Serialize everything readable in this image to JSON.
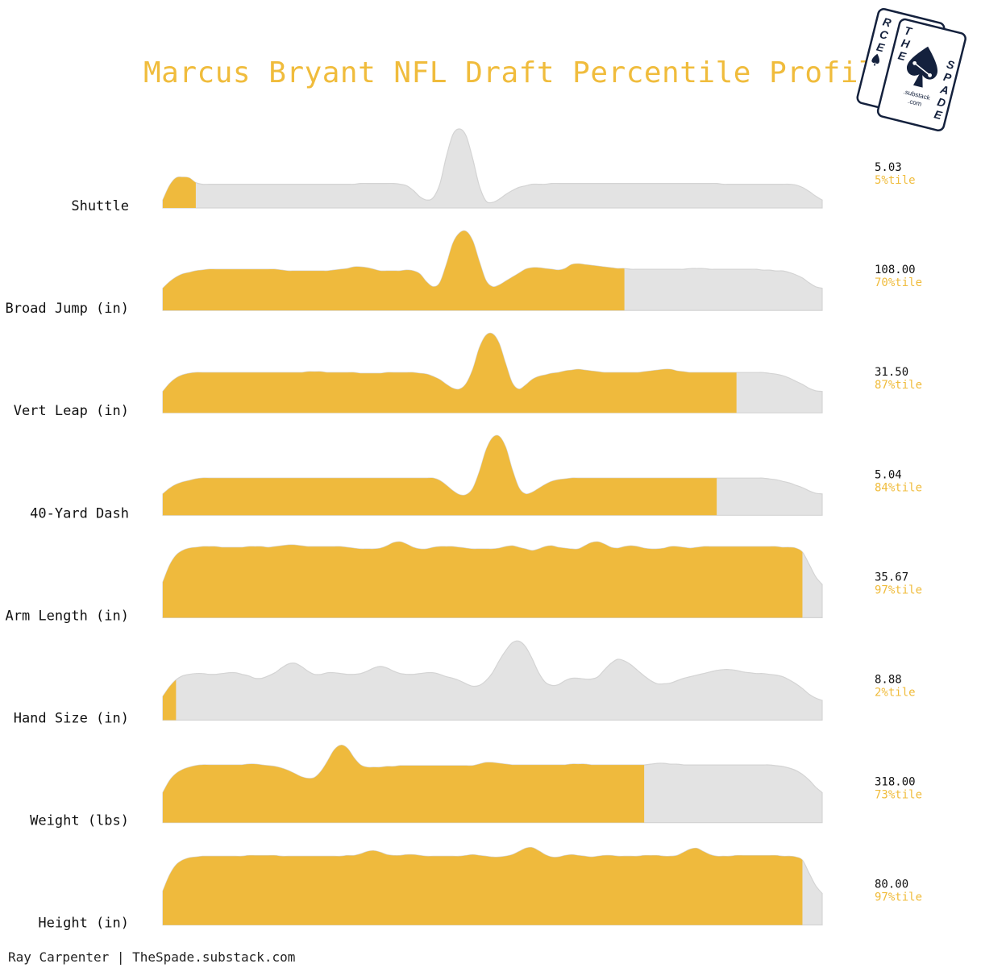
{
  "chart_data": {
    "type": "ridgeline",
    "title": "Marcus Bryant NFL Draft Percentile Profile",
    "x_range": [
      0,
      100
    ],
    "rows": [
      {
        "label": "Shuttle",
        "value": "5.03",
        "percentile": 5,
        "percentile_label": "5%tile",
        "density": [
          0.1,
          0.28,
          0.38,
          0.39,
          0.38,
          0.32,
          0.3,
          0.3,
          0.3,
          0.3,
          0.3,
          0.3,
          0.3,
          0.3,
          0.3,
          0.3,
          0.3,
          0.3,
          0.3,
          0.3,
          0.3,
          0.3,
          0.3,
          0.3,
          0.3,
          0.3,
          0.3,
          0.3,
          0.3,
          0.3,
          0.31,
          0.31,
          0.31,
          0.31,
          0.31,
          0.31,
          0.3,
          0.28,
          0.22,
          0.14,
          0.1,
          0.13,
          0.3,
          0.65,
          0.93,
          1.0,
          0.91,
          0.62,
          0.28,
          0.09,
          0.07,
          0.11,
          0.17,
          0.22,
          0.26,
          0.28,
          0.3,
          0.3,
          0.3,
          0.31,
          0.31,
          0.31,
          0.31,
          0.31,
          0.31,
          0.31,
          0.31,
          0.31,
          0.31,
          0.31,
          0.31,
          0.31,
          0.31,
          0.31,
          0.31,
          0.31,
          0.31,
          0.31,
          0.31,
          0.31,
          0.31,
          0.31,
          0.31,
          0.31,
          0.31,
          0.3,
          0.3,
          0.3,
          0.3,
          0.3,
          0.3,
          0.3,
          0.3,
          0.3,
          0.3,
          0.3,
          0.29,
          0.26,
          0.21,
          0.15,
          0.1
        ]
      },
      {
        "label": "Broad Jump (in)",
        "value": "108.00",
        "percentile": 70,
        "percentile_label": "70%tile",
        "density": [
          0.28,
          0.36,
          0.42,
          0.46,
          0.48,
          0.5,
          0.51,
          0.52,
          0.52,
          0.52,
          0.52,
          0.52,
          0.52,
          0.52,
          0.52,
          0.52,
          0.52,
          0.52,
          0.51,
          0.5,
          0.5,
          0.5,
          0.5,
          0.5,
          0.5,
          0.5,
          0.51,
          0.52,
          0.53,
          0.55,
          0.55,
          0.54,
          0.52,
          0.5,
          0.5,
          0.5,
          0.5,
          0.51,
          0.5,
          0.46,
          0.36,
          0.3,
          0.35,
          0.58,
          0.85,
          0.98,
          1.0,
          0.88,
          0.62,
          0.38,
          0.3,
          0.32,
          0.37,
          0.42,
          0.47,
          0.52,
          0.54,
          0.54,
          0.53,
          0.52,
          0.51,
          0.53,
          0.58,
          0.59,
          0.58,
          0.57,
          0.56,
          0.55,
          0.54,
          0.53,
          0.53,
          0.52,
          0.52,
          0.52,
          0.52,
          0.52,
          0.52,
          0.52,
          0.52,
          0.52,
          0.53,
          0.53,
          0.53,
          0.52,
          0.52,
          0.52,
          0.52,
          0.52,
          0.52,
          0.52,
          0.52,
          0.51,
          0.51,
          0.5,
          0.5,
          0.48,
          0.45,
          0.41,
          0.35,
          0.3,
          0.28
        ]
      },
      {
        "label": "Vert Leap (in)",
        "value": "31.50",
        "percentile": 87,
        "percentile_label": "87%tile",
        "density": [
          0.27,
          0.37,
          0.44,
          0.48,
          0.5,
          0.51,
          0.51,
          0.51,
          0.51,
          0.51,
          0.51,
          0.51,
          0.51,
          0.51,
          0.51,
          0.51,
          0.51,
          0.51,
          0.51,
          0.51,
          0.51,
          0.51,
          0.52,
          0.52,
          0.52,
          0.51,
          0.51,
          0.51,
          0.51,
          0.51,
          0.5,
          0.5,
          0.5,
          0.5,
          0.51,
          0.51,
          0.51,
          0.51,
          0.51,
          0.5,
          0.49,
          0.46,
          0.42,
          0.36,
          0.31,
          0.3,
          0.37,
          0.55,
          0.82,
          0.98,
          1.0,
          0.88,
          0.62,
          0.38,
          0.3,
          0.35,
          0.42,
          0.46,
          0.48,
          0.5,
          0.51,
          0.53,
          0.54,
          0.55,
          0.54,
          0.53,
          0.52,
          0.51,
          0.51,
          0.51,
          0.51,
          0.51,
          0.51,
          0.52,
          0.53,
          0.54,
          0.55,
          0.55,
          0.53,
          0.52,
          0.51,
          0.51,
          0.51,
          0.51,
          0.51,
          0.51,
          0.51,
          0.51,
          0.51,
          0.51,
          0.51,
          0.51,
          0.5,
          0.49,
          0.47,
          0.44,
          0.4,
          0.36,
          0.31,
          0.28,
          0.27
        ]
      },
      {
        "label": "40-Yard Dash",
        "value": "5.04",
        "percentile": 84,
        "percentile_label": "84%tile",
        "density": [
          0.27,
          0.34,
          0.39,
          0.42,
          0.44,
          0.46,
          0.47,
          0.47,
          0.47,
          0.47,
          0.47,
          0.47,
          0.47,
          0.47,
          0.47,
          0.47,
          0.47,
          0.47,
          0.47,
          0.47,
          0.47,
          0.47,
          0.47,
          0.47,
          0.47,
          0.47,
          0.47,
          0.47,
          0.47,
          0.47,
          0.47,
          0.47,
          0.47,
          0.47,
          0.47,
          0.47,
          0.47,
          0.47,
          0.47,
          0.47,
          0.47,
          0.47,
          0.44,
          0.38,
          0.31,
          0.26,
          0.26,
          0.34,
          0.55,
          0.82,
          0.98,
          1.0,
          0.86,
          0.58,
          0.35,
          0.27,
          0.29,
          0.34,
          0.39,
          0.43,
          0.45,
          0.46,
          0.47,
          0.47,
          0.47,
          0.47,
          0.47,
          0.47,
          0.47,
          0.47,
          0.47,
          0.47,
          0.47,
          0.47,
          0.47,
          0.47,
          0.47,
          0.47,
          0.47,
          0.47,
          0.47,
          0.47,
          0.47,
          0.47,
          0.47,
          0.47,
          0.47,
          0.47,
          0.47,
          0.47,
          0.47,
          0.47,
          0.46,
          0.45,
          0.43,
          0.41,
          0.38,
          0.35,
          0.31,
          0.28,
          0.27
        ]
      },
      {
        "label": "Arm Length (in)",
        "value": "35.67",
        "percentile": 97,
        "percentile_label": "97%tile",
        "density": [
          0.45,
          0.66,
          0.79,
          0.85,
          0.88,
          0.89,
          0.9,
          0.9,
          0.9,
          0.89,
          0.89,
          0.89,
          0.89,
          0.9,
          0.9,
          0.9,
          0.89,
          0.9,
          0.91,
          0.92,
          0.92,
          0.91,
          0.9,
          0.9,
          0.9,
          0.9,
          0.9,
          0.9,
          0.89,
          0.88,
          0.87,
          0.87,
          0.87,
          0.88,
          0.91,
          0.95,
          0.96,
          0.93,
          0.89,
          0.87,
          0.87,
          0.89,
          0.9,
          0.9,
          0.9,
          0.89,
          0.88,
          0.87,
          0.87,
          0.87,
          0.87,
          0.88,
          0.9,
          0.91,
          0.89,
          0.87,
          0.85,
          0.87,
          0.9,
          0.91,
          0.89,
          0.88,
          0.87,
          0.87,
          0.91,
          0.95,
          0.96,
          0.93,
          0.89,
          0.88,
          0.9,
          0.91,
          0.9,
          0.88,
          0.87,
          0.87,
          0.88,
          0.9,
          0.9,
          0.89,
          0.88,
          0.89,
          0.9,
          0.9,
          0.9,
          0.9,
          0.9,
          0.9,
          0.9,
          0.9,
          0.9,
          0.9,
          0.9,
          0.9,
          0.89,
          0.89,
          0.88,
          0.83,
          0.68,
          0.52,
          0.42
        ]
      },
      {
        "label": "Hand Size (in)",
        "value": "8.88",
        "percentile": 2,
        "percentile_label": "2%tile",
        "density": [
          0.3,
          0.42,
          0.51,
          0.56,
          0.58,
          0.59,
          0.59,
          0.58,
          0.58,
          0.59,
          0.6,
          0.6,
          0.58,
          0.56,
          0.53,
          0.53,
          0.56,
          0.6,
          0.66,
          0.71,
          0.72,
          0.68,
          0.62,
          0.58,
          0.58,
          0.6,
          0.6,
          0.59,
          0.58,
          0.58,
          0.59,
          0.62,
          0.66,
          0.68,
          0.66,
          0.62,
          0.59,
          0.58,
          0.58,
          0.59,
          0.6,
          0.6,
          0.58,
          0.55,
          0.53,
          0.5,
          0.46,
          0.43,
          0.44,
          0.5,
          0.6,
          0.75,
          0.88,
          0.98,
          1.0,
          0.93,
          0.78,
          0.6,
          0.48,
          0.44,
          0.45,
          0.5,
          0.53,
          0.53,
          0.52,
          0.52,
          0.55,
          0.64,
          0.72,
          0.77,
          0.75,
          0.7,
          0.63,
          0.56,
          0.5,
          0.46,
          0.46,
          0.47,
          0.5,
          0.53,
          0.55,
          0.57,
          0.59,
          0.61,
          0.63,
          0.64,
          0.64,
          0.63,
          0.61,
          0.6,
          0.59,
          0.59,
          0.58,
          0.57,
          0.55,
          0.51,
          0.46,
          0.4,
          0.33,
          0.28,
          0.25
        ]
      },
      {
        "label": "Weight (lbs)",
        "value": "318.00",
        "percentile": 73,
        "percentile_label": "73%tile",
        "density": [
          0.38,
          0.53,
          0.62,
          0.67,
          0.7,
          0.72,
          0.73,
          0.73,
          0.73,
          0.73,
          0.73,
          0.73,
          0.73,
          0.74,
          0.74,
          0.73,
          0.72,
          0.71,
          0.69,
          0.66,
          0.62,
          0.58,
          0.56,
          0.57,
          0.65,
          0.78,
          0.92,
          0.98,
          0.94,
          0.82,
          0.73,
          0.7,
          0.7,
          0.7,
          0.71,
          0.71,
          0.72,
          0.72,
          0.72,
          0.72,
          0.72,
          0.72,
          0.72,
          0.72,
          0.72,
          0.72,
          0.72,
          0.72,
          0.74,
          0.76,
          0.76,
          0.75,
          0.74,
          0.73,
          0.73,
          0.73,
          0.73,
          0.73,
          0.73,
          0.73,
          0.73,
          0.73,
          0.74,
          0.74,
          0.74,
          0.73,
          0.73,
          0.73,
          0.73,
          0.73,
          0.73,
          0.73,
          0.73,
          0.73,
          0.74,
          0.75,
          0.75,
          0.74,
          0.74,
          0.73,
          0.73,
          0.73,
          0.73,
          0.73,
          0.73,
          0.73,
          0.73,
          0.73,
          0.73,
          0.73,
          0.73,
          0.73,
          0.73,
          0.72,
          0.71,
          0.69,
          0.66,
          0.61,
          0.54,
          0.45,
          0.38
        ]
      },
      {
        "label": "Height (in)",
        "value": "80.00",
        "percentile": 97,
        "percentile_label": "97%tile",
        "density": [
          0.43,
          0.63,
          0.76,
          0.82,
          0.85,
          0.86,
          0.87,
          0.87,
          0.87,
          0.87,
          0.87,
          0.87,
          0.87,
          0.88,
          0.88,
          0.88,
          0.88,
          0.88,
          0.87,
          0.87,
          0.87,
          0.87,
          0.87,
          0.87,
          0.87,
          0.87,
          0.87,
          0.87,
          0.88,
          0.88,
          0.9,
          0.93,
          0.94,
          0.92,
          0.89,
          0.88,
          0.88,
          0.89,
          0.89,
          0.88,
          0.87,
          0.87,
          0.87,
          0.87,
          0.87,
          0.87,
          0.88,
          0.89,
          0.88,
          0.87,
          0.86,
          0.86,
          0.87,
          0.89,
          0.93,
          0.97,
          0.98,
          0.94,
          0.89,
          0.86,
          0.86,
          0.88,
          0.89,
          0.88,
          0.87,
          0.86,
          0.87,
          0.88,
          0.88,
          0.87,
          0.87,
          0.87,
          0.87,
          0.88,
          0.88,
          0.88,
          0.87,
          0.87,
          0.88,
          0.92,
          0.96,
          0.97,
          0.93,
          0.89,
          0.87,
          0.87,
          0.87,
          0.88,
          0.88,
          0.88,
          0.88,
          0.88,
          0.88,
          0.88,
          0.87,
          0.87,
          0.86,
          0.82,
          0.66,
          0.5,
          0.4
        ]
      }
    ]
  },
  "colors": {
    "highlight": "#efba3d",
    "base": "#e3e3e3",
    "base_edge": "#d4d4d4",
    "title": "#f0bc3c",
    "logo": "#14213d"
  },
  "credit": "Ray Carpenter | TheSpade.substack.com",
  "logo": {
    "back_card_letters": [
      "R",
      "C",
      "E"
    ],
    "front_card_left": [
      "T",
      "H",
      "E"
    ],
    "front_card_right": [
      "S",
      "P",
      "A",
      "D",
      "E"
    ],
    "substack": ".substack",
    "com": ".com"
  }
}
